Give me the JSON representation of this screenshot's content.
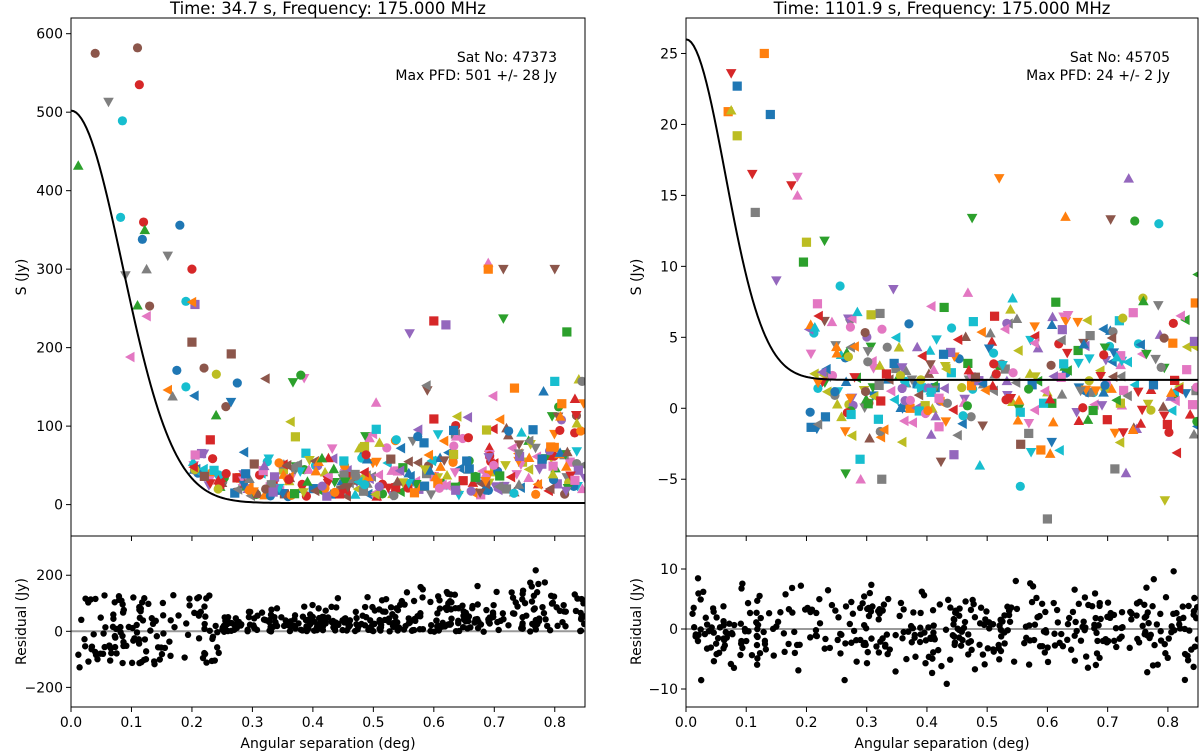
{
  "chart_data": [
    {
      "type": "scatter",
      "title": "Time: 34.7 s, Frequency: 175.000 MHz",
      "annotation": [
        "Sat No: 47373",
        "Max PFD: 501 +/- 28 Jy"
      ],
      "ylabel": "S (Jy)",
      "xlim": [
        0.0,
        0.85
      ],
      "ylim": [
        -40,
        620
      ],
      "yticks": [
        0,
        100,
        200,
        300,
        400,
        500,
        600
      ],
      "fit_model": {
        "amplitude": 500,
        "sigma": 0.085,
        "offset": 2
      },
      "highlight_points": [
        {
          "x": 0.04,
          "y": 575,
          "marker": "circle",
          "color": "#8c564b"
        },
        {
          "x": 0.062,
          "y": 513,
          "marker": "triangle-down",
          "color": "#7f7f7f"
        },
        {
          "x": 0.11,
          "y": 582,
          "marker": "circle",
          "color": "#8c564b"
        },
        {
          "x": 0.113,
          "y": 535,
          "marker": "circle",
          "color": "#d62728"
        },
        {
          "x": 0.012,
          "y": 432,
          "marker": "triangle-up",
          "color": "#2ca02c"
        },
        {
          "x": 0.085,
          "y": 489,
          "marker": "circle",
          "color": "#17becf"
        },
        {
          "x": 0.082,
          "y": 366,
          "marker": "circle",
          "color": "#17becf"
        },
        {
          "x": 0.12,
          "y": 360,
          "marker": "circle",
          "color": "#d62728"
        },
        {
          "x": 0.118,
          "y": 338,
          "marker": "circle",
          "color": "#1f77b4"
        },
        {
          "x": 0.122,
          "y": 350,
          "marker": "triangle-up",
          "color": "#2ca02c"
        },
        {
          "x": 0.18,
          "y": 356,
          "marker": "circle",
          "color": "#1f77b4"
        },
        {
          "x": 0.16,
          "y": 317,
          "marker": "triangle-down",
          "color": "#7f7f7f"
        },
        {
          "x": 0.2,
          "y": 300,
          "marker": "circle",
          "color": "#d62728"
        },
        {
          "x": 0.09,
          "y": 292,
          "marker": "triangle-down",
          "color": "#7f7f7f"
        },
        {
          "x": 0.125,
          "y": 300,
          "marker": "triangle-up",
          "color": "#7f7f7f"
        },
        {
          "x": 0.13,
          "y": 253,
          "marker": "circle",
          "color": "#8c564b"
        },
        {
          "x": 0.11,
          "y": 254,
          "marker": "triangle-up",
          "color": "#2ca02c"
        },
        {
          "x": 0.19,
          "y": 259,
          "marker": "circle",
          "color": "#17becf"
        },
        {
          "x": 0.205,
          "y": 255,
          "marker": "square",
          "color": "#9467bd"
        },
        {
          "x": 0.2,
          "y": 258,
          "marker": "triangle-left",
          "color": "#ff7f0e"
        },
        {
          "x": 0.125,
          "y": 240,
          "marker": "triangle-left",
          "color": "#e377c2"
        },
        {
          "x": 0.098,
          "y": 188,
          "marker": "triangle-left",
          "color": "#e377c2"
        },
        {
          "x": 0.2,
          "y": 207,
          "marker": "square",
          "color": "#8c564b"
        },
        {
          "x": 0.22,
          "y": 174,
          "marker": "circle",
          "color": "#8c564b"
        },
        {
          "x": 0.265,
          "y": 192,
          "marker": "square",
          "color": "#8c564b"
        },
        {
          "x": 0.16,
          "y": 146,
          "marker": "triangle-left",
          "color": "#ff7f0e"
        },
        {
          "x": 0.175,
          "y": 171,
          "marker": "circle",
          "color": "#1f77b4"
        },
        {
          "x": 0.19,
          "y": 150,
          "marker": "circle",
          "color": "#17becf"
        },
        {
          "x": 0.168,
          "y": 138,
          "marker": "triangle-up",
          "color": "#7f7f7f"
        },
        {
          "x": 0.275,
          "y": 155,
          "marker": "circle",
          "color": "#1f77b4"
        },
        {
          "x": 0.69,
          "y": 308,
          "marker": "triangle-up",
          "color": "#e377c2"
        },
        {
          "x": 0.69,
          "y": 300,
          "marker": "square",
          "color": "#ff7f0e"
        },
        {
          "x": 0.715,
          "y": 300,
          "marker": "triangle-down",
          "color": "#8c564b"
        },
        {
          "x": 0.8,
          "y": 300,
          "marker": "triangle-down",
          "color": "#8c564b"
        },
        {
          "x": 0.715,
          "y": 237,
          "marker": "triangle-down",
          "color": "#2ca02c"
        },
        {
          "x": 0.6,
          "y": 234,
          "marker": "square",
          "color": "#d62728"
        },
        {
          "x": 0.62,
          "y": 229,
          "marker": "square",
          "color": "#9467bd"
        },
        {
          "x": 0.82,
          "y": 220,
          "marker": "square",
          "color": "#2ca02c"
        },
        {
          "x": 0.56,
          "y": 218,
          "marker": "triangle-down",
          "color": "#9467bd"
        },
        {
          "x": 0.38,
          "y": 165,
          "marker": "circle",
          "color": "#2ca02c"
        },
        {
          "x": 0.845,
          "y": 157,
          "marker": "circle",
          "color": "#7f7f7f"
        },
        {
          "x": 0.8,
          "y": 157,
          "marker": "square",
          "color": "#17becf"
        }
      ],
      "cluster_points": {
        "count": 420,
        "x_range": [
          0.2,
          0.85
        ],
        "y_range": [
          5,
          140
        ]
      },
      "residual": {
        "ylabel": "Residual (Jy)",
        "ylim": [
          -270,
          340
        ],
        "yticks": [
          -200,
          0,
          200
        ],
        "points_count": 480
      }
    },
    {
      "type": "scatter",
      "title": "Time: 1101.9 s, Frequency: 175.000 MHz",
      "annotation": [
        "Sat No: 45705",
        "Max PFD: 24 +/- 2 Jy"
      ],
      "ylabel": "S (Jy)",
      "xlim": [
        0.0,
        0.85
      ],
      "ylim": [
        -9,
        27.5
      ],
      "yticks": [
        -5,
        0,
        5,
        10,
        15,
        20,
        25
      ],
      "fit_model": {
        "amplitude": 24,
        "sigma": 0.065,
        "offset": 2
      },
      "highlight_points": [
        {
          "x": 0.13,
          "y": 25,
          "marker": "square",
          "color": "#ff7f0e"
        },
        {
          "x": 0.075,
          "y": 23.6,
          "marker": "triangle-down",
          "color": "#d62728"
        },
        {
          "x": 0.085,
          "y": 22.7,
          "marker": "square",
          "color": "#1f77b4"
        },
        {
          "x": 0.07,
          "y": 20.9,
          "marker": "square",
          "color": "#ff7f0e"
        },
        {
          "x": 0.075,
          "y": 21.0,
          "marker": "triangle-up",
          "color": "#bcbd22"
        },
        {
          "x": 0.085,
          "y": 19.2,
          "marker": "square",
          "color": "#bcbd22"
        },
        {
          "x": 0.14,
          "y": 20.7,
          "marker": "square",
          "color": "#1f77b4"
        },
        {
          "x": 0.11,
          "y": 16.5,
          "marker": "triangle-down",
          "color": "#d62728"
        },
        {
          "x": 0.175,
          "y": 15.7,
          "marker": "triangle-down",
          "color": "#d62728"
        },
        {
          "x": 0.185,
          "y": 15.0,
          "marker": "triangle-up",
          "color": "#e377c2"
        },
        {
          "x": 0.115,
          "y": 13.8,
          "marker": "square",
          "color": "#7f7f7f"
        },
        {
          "x": 0.2,
          "y": 11.7,
          "marker": "square",
          "color": "#bcbd22"
        },
        {
          "x": 0.23,
          "y": 11.8,
          "marker": "triangle-down",
          "color": "#2ca02c"
        },
        {
          "x": 0.195,
          "y": 10.3,
          "marker": "square",
          "color": "#2ca02c"
        },
        {
          "x": 0.15,
          "y": 9.0,
          "marker": "triangle-down",
          "color": "#9467bd"
        },
        {
          "x": 0.185,
          "y": 16.3,
          "marker": "triangle-down",
          "color": "#e377c2"
        },
        {
          "x": 0.52,
          "y": 16.2,
          "marker": "triangle-down",
          "color": "#ff7f0e"
        },
        {
          "x": 0.735,
          "y": 16.2,
          "marker": "triangle-up",
          "color": "#9467bd"
        },
        {
          "x": 0.63,
          "y": 13.5,
          "marker": "triangle-up",
          "color": "#ff7f0e"
        },
        {
          "x": 0.475,
          "y": 13.4,
          "marker": "triangle-down",
          "color": "#2ca02c"
        },
        {
          "x": 0.705,
          "y": 13.3,
          "marker": "triangle-down",
          "color": "#8c564b"
        },
        {
          "x": 0.745,
          "y": 13.2,
          "marker": "circle",
          "color": "#2ca02c"
        },
        {
          "x": 0.785,
          "y": 13.0,
          "marker": "circle",
          "color": "#17becf"
        },
        {
          "x": 0.6,
          "y": -7.8,
          "marker": "square",
          "color": "#7f7f7f"
        },
        {
          "x": 0.795,
          "y": -6.5,
          "marker": "triangle-down",
          "color": "#bcbd22"
        },
        {
          "x": 0.555,
          "y": -5.5,
          "marker": "circle",
          "color": "#17becf"
        },
        {
          "x": 0.325,
          "y": -5.0,
          "marker": "square",
          "color": "#7f7f7f"
        },
        {
          "x": 0.29,
          "y": -5.0,
          "marker": "triangle-up",
          "color": "#e377c2"
        },
        {
          "x": 0.265,
          "y": -4.6,
          "marker": "triangle-down",
          "color": "#2ca02c"
        }
      ],
      "cluster_points": {
        "count": 380,
        "x_range": [
          0.2,
          0.85
        ],
        "y_range": [
          -4,
          8
        ]
      },
      "residual": {
        "ylabel": "Residual (Jy)",
        "ylim": [
          -13,
          15.5
        ],
        "yticks": [
          -10,
          0,
          10
        ],
        "points_count": 420
      }
    }
  ],
  "shared": {
    "xlabel": "Angular separation (deg)",
    "xticks": [
      0.0,
      0.1,
      0.2,
      0.3,
      0.4,
      0.5,
      0.6,
      0.7,
      0.8
    ],
    "marker_palette": [
      "#1f77b4",
      "#ff7f0e",
      "#2ca02c",
      "#d62728",
      "#9467bd",
      "#8c564b",
      "#e377c2",
      "#7f7f7f",
      "#bcbd22",
      "#17becf"
    ],
    "fit_color": "#000000",
    "residual_zero_color": "#999999",
    "residual_point_color": "#000000"
  }
}
